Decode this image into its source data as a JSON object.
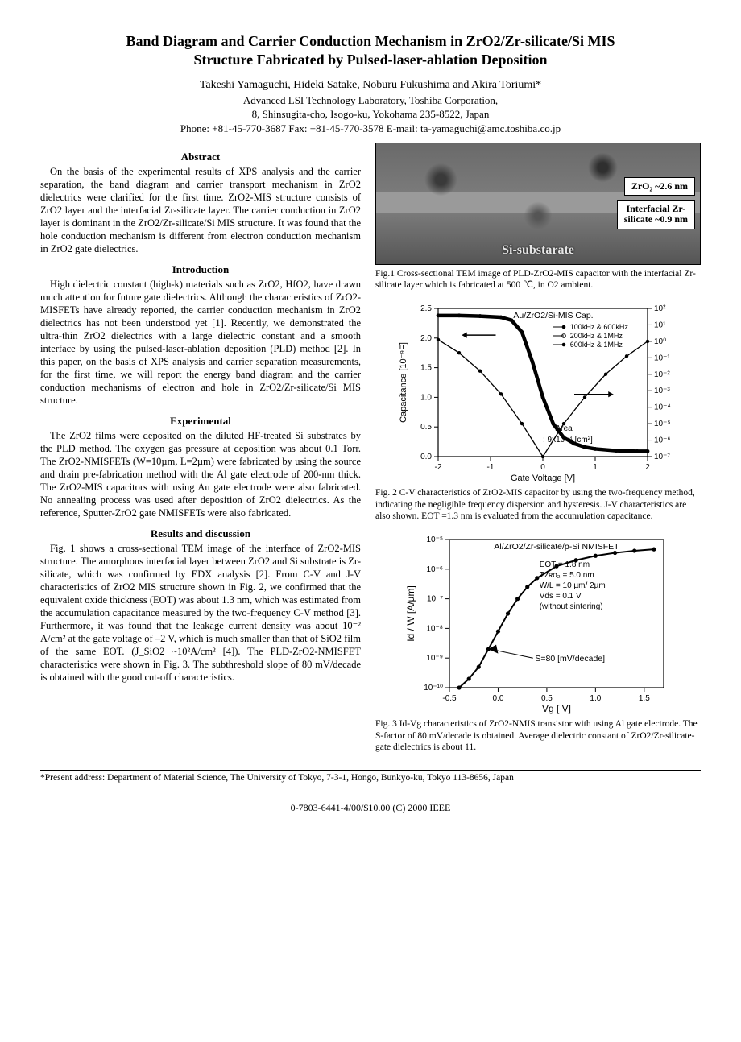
{
  "title_line1": "Band Diagram and Carrier Conduction Mechanism in ZrO2/Zr-silicate/Si MIS",
  "title_line2": "Structure Fabricated by Pulsed-laser-ablation Deposition",
  "authors_line1": "Takeshi Yamaguchi, Hideki Satake, Noburu Fukushima and Akira Toriumi*",
  "authors_line2": "Advanced LSI Technology Laboratory, Toshiba Corporation,",
  "authors_line3": "8, Shinsugita-cho, Isogo-ku, Yokohama 235-8522, Japan",
  "authors_line4": "Phone: +81-45-770-3687    Fax: +81-45-770-3578    E-mail: ta-yamaguchi@amc.toshiba.co.jp",
  "sec_abstract": "Abstract",
  "abstract_text": "On the basis of the experimental results of XPS analysis and the carrier separation, the band diagram and carrier transport mechanism in ZrO2 dielectrics were clarified for the first time. ZrO2-MIS structure consists of ZrO2 layer and the interfacial Zr-silicate layer. The carrier conduction in ZrO2 layer is dominant in the ZrO2/Zr-silicate/Si MIS structure. It was found that the hole conduction mechanism is different from electron conduction mechanism in ZrO2 gate dielectrics.",
  "sec_intro": "Introduction",
  "intro_text": "High dielectric constant (high-k) materials such as ZrO2, HfO2, have drawn much attention for future gate dielectrics. Although the characteristics of ZrO2-MISFETs have already reported, the carrier conduction mechanism in ZrO2 dielectrics has not been understood yet [1]. Recently, we demonstrated the ultra-thin ZrO2 dielectrics with a large dielectric constant and a smooth interface by using the pulsed-laser-ablation deposition (PLD) method [2]. In this paper, on the basis of XPS analysis and carrier separation measurements, for the first time, we will report the energy band diagram and the carrier conduction mechanisms of electron and hole in ZrO2/Zr-silicate/Si MIS structure.",
  "sec_exp": "Experimental",
  "exp_text": "The ZrO2 films were deposited on the diluted HF-treated Si substrates by the PLD method. The oxygen gas pressure at deposition was about 0.1 Torr. The ZrO2-NMISFETs (W=10µm, L=2µm) were fabricated by using the source and drain pre-fabrication method with the Al gate electrode of 200-nm thick. The ZrO2-MIS capacitors with using Au gate electrode were also fabricated. No annealing process was used after deposition of ZrO2 dielectrics. As the reference, Sputter-ZrO2 gate NMISFETs were also fabricated.",
  "sec_res": "Results and discussion",
  "res_text": "Fig. 1 shows a cross-sectional TEM image of the interface of ZrO2-MIS structure. The amorphous interfacial layer between ZrO2 and Si substrate is Zr-silicate, which was confirmed by EDX analysis [2]. From C-V and J-V characteristics of ZrO2 MIS structure shown in Fig. 2, we confirmed that the equivalent oxide thickness (EOT) was about 1.3 nm, which was estimated from the accumulation capacitance measured by the two-frequency C-V method [3]. Furthermore, it was found that the leakage current density was about 10⁻² A/cm² at the gate voltage of –2 V, which is much smaller than that of SiO2 film of the same EOT. (J_SiO2 ~10²A/cm² [4]). The PLD-ZrO2-NMISFET characteristics were shown in Fig. 3. The subthreshold slope of 80 mV/decade is obtained with the good cut-off characteristics.",
  "fig1": {
    "label_top": "ZrO₂ ~2.6 nm",
    "label_mid1": "Interfacial Zr-",
    "label_mid2": "silicate ~0.9 nm",
    "substrate": "Si-substarate",
    "caption": "Fig.1 Cross-sectional TEM image of PLD-ZrO2-MIS capacitor with the interfacial Zr-silicate layer which is fabricated at 500 ℃, in O2 ambient."
  },
  "fig2": {
    "caption": "Fig. 2 C-V characteristics of ZrO2-MIS capacitor by using the two-frequency method, indicating the negligible frequency dispersion and hysteresis. J-V characteristics are also shown. EOT =1.3 nm is evaluated from the accumulation capacitance.",
    "title": "Au/ZrO2/Si-MIS Cap.",
    "legend1": "100kHz & 600kHz",
    "legend2": "200kHz & 1MHz",
    "legend3": "600kHz & 1MHz",
    "area_lbl1": "Area",
    "area_lbl2": ": 9x10⁻⁴ [cm²]",
    "xlabel": "Gate Voltage [V]",
    "ylabel": "Capacitance [10⁻⁹F]",
    "xlim": [
      -2,
      2
    ],
    "xticks": [
      -2,
      -1,
      0,
      1,
      2
    ],
    "ylim_left": [
      0.0,
      2.5
    ],
    "yticks_left": [
      0.0,
      0.5,
      1.0,
      1.5,
      2.0,
      2.5
    ],
    "yticks_right": [
      "10⁻⁷",
      "10⁻⁶",
      "10⁻⁵",
      "10⁻⁴",
      "10⁻³",
      "10⁻²",
      "10⁻¹",
      "10⁰",
      "10¹",
      "10²"
    ],
    "cv_series": {
      "x": [
        -2.0,
        -1.6,
        -1.2,
        -0.8,
        -0.6,
        -0.4,
        -0.2,
        0.0,
        0.2,
        0.4,
        0.6,
        0.8,
        1.0,
        1.4,
        1.8,
        2.0
      ],
      "y": [
        2.38,
        2.38,
        2.37,
        2.35,
        2.3,
        2.1,
        1.6,
        1.0,
        0.55,
        0.32,
        0.22,
        0.16,
        0.13,
        0.1,
        0.09,
        0.09
      ]
    },
    "jv_series": {
      "x": [
        -2.0,
        -1.6,
        -1.2,
        -0.8,
        -0.4,
        0.0,
        0.4,
        0.8,
        1.2,
        1.6,
        2.0
      ],
      "logy_idx": [
        7.1,
        6.3,
        5.2,
        3.8,
        2.0,
        0.0,
        2.0,
        3.6,
        5.0,
        6.1,
        7.0
      ]
    },
    "cv_color": "#000000",
    "jv_color": "#000000",
    "bg": "#ffffff",
    "axis_color": "#000000",
    "font_size": 10
  },
  "fig3": {
    "caption": "Fig. 3 Id-Vg characteristics of ZrO2-NMIS transistor with using Al gate electrode. The S-factor of 80 mV/decade is obtained. Average dielectric constant of ZrO2/Zr-silicate-gate dielectrics is about 11.",
    "title": "Al/ZrO2/Zr-silicate/p-Si NMISFET",
    "info1": "EOT = 1.8 nm",
    "info2": "Tᴢʀᴏ₂ = 5.0 nm",
    "info3": "W/L = 10 µm/ 2µm",
    "info4": "Vds = 0.1 V",
    "info5": "(without sintering)",
    "slabel": "S=80 [mV/decade]",
    "xlabel": "Vg [ V]",
    "ylabel": "Id / W  [A/µm]",
    "xlim": [
      -0.5,
      1.7
    ],
    "xticks": [
      -0.5,
      0.0,
      0.5,
      1.0,
      1.5
    ],
    "yticks": [
      "10⁻¹⁰",
      "10⁻⁹",
      "10⁻⁸",
      "10⁻⁷",
      "10⁻⁶",
      "10⁻⁵"
    ],
    "series": {
      "x": [
        -0.4,
        -0.3,
        -0.2,
        -0.1,
        0.0,
        0.1,
        0.2,
        0.3,
        0.4,
        0.6,
        0.8,
        1.0,
        1.2,
        1.4,
        1.6
      ],
      "logy": [
        -10,
        -9.7,
        -9.3,
        -8.7,
        -8.1,
        -7.5,
        -7.0,
        -6.6,
        -6.3,
        -5.9,
        -5.7,
        -5.55,
        -5.45,
        -5.38,
        -5.33
      ]
    },
    "color": "#000000",
    "bg": "#ffffff",
    "axis_color": "#000000",
    "font_size": 10
  },
  "footnote": "*Present address: Department of Material Science, The University of Tokyo, 7-3-1, Hongo, Bunkyo-ku, Tokyo 113-8656, Japan",
  "footer": "0-7803-6441-4/00/$10.00 (C) 2000 IEEE"
}
